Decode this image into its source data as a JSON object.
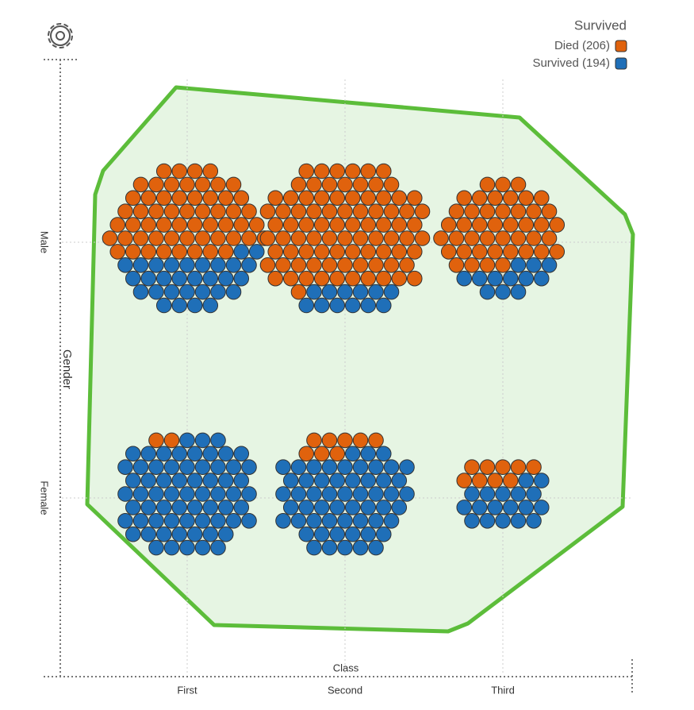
{
  "chart_data": {
    "type": "swarm",
    "x_label": "Class",
    "y_label": "Gender",
    "categories": [
      "First",
      "Second",
      "Third"
    ],
    "rows": [
      "Male",
      "Female"
    ],
    "legend_title": "Survived",
    "series": [
      {
        "name": "Died (206)",
        "color": "#e0620d",
        "values": [
          [
            57,
            86,
            44
          ],
          [
            2,
            8,
            9
          ]
        ]
      },
      {
        "name": "Survived (194)",
        "color": "#1f6fb8",
        "values": [
          [
            30,
            12,
            12
          ],
          [
            66,
            56,
            18
          ]
        ]
      }
    ]
  }
}
